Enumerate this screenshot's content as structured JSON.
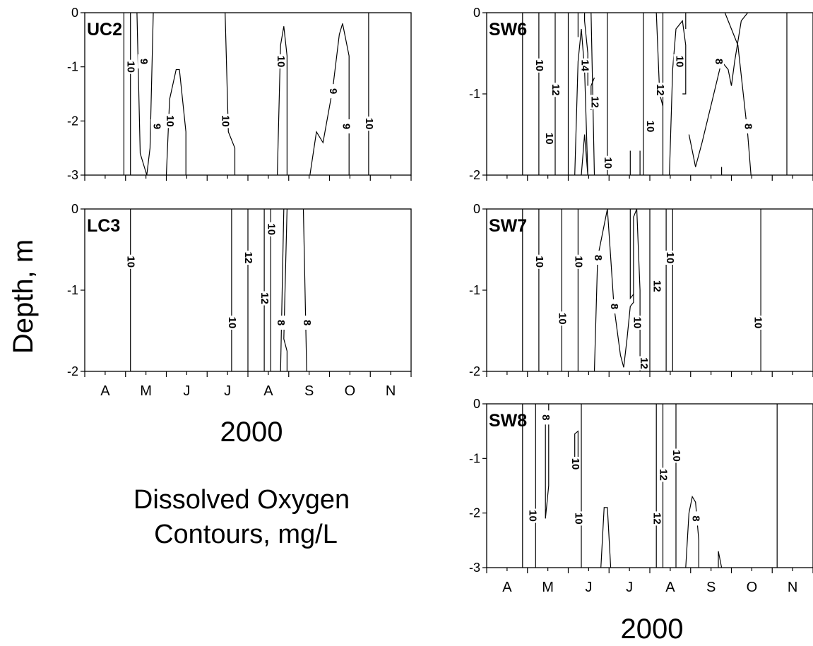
{
  "figure": {
    "ylabel": "Depth, m",
    "year_left": "2000",
    "year_right": "2000",
    "caption_line1": "Dissolved Oxygen",
    "caption_line2": "Contours, mg/L"
  },
  "chart_data": [
    {
      "type": "contour",
      "id": "UC2",
      "title": "UC2",
      "ylim": [
        -3,
        0
      ],
      "yticks": [
        "0",
        "-1",
        "-2",
        "-3"
      ],
      "xticks": [],
      "contour_labels": [
        {
          "text": "10",
          "x": 0.14,
          "y": -1.0
        },
        {
          "text": "9",
          "x": 0.18,
          "y": -0.9
        },
        {
          "text": "9",
          "x": 0.22,
          "y": -2.1
        },
        {
          "text": "10",
          "x": 0.26,
          "y": -2.0
        },
        {
          "text": "10",
          "x": 0.43,
          "y": -2.0
        },
        {
          "text": "10",
          "x": 0.6,
          "y": -0.9
        },
        {
          "text": "9",
          "x": 0.76,
          "y": -1.45
        },
        {
          "text": "9",
          "x": 0.8,
          "y": -2.1
        },
        {
          "text": "10",
          "x": 0.87,
          "y": -2.05
        }
      ]
    },
    {
      "type": "contour",
      "id": "LC3",
      "title": "LC3",
      "ylim": [
        -2,
        0
      ],
      "yticks": [
        "0",
        "-1",
        "-2"
      ],
      "xticks": [
        "A",
        "M",
        "J",
        "J",
        "A",
        "S",
        "O",
        "N"
      ],
      "contour_labels": [
        {
          "text": "10",
          "x": 0.14,
          "y": -0.65
        },
        {
          "text": "12",
          "x": 0.5,
          "y": -0.6
        },
        {
          "text": "10",
          "x": 0.57,
          "y": -0.25
        },
        {
          "text": "12",
          "x": 0.55,
          "y": -1.1
        },
        {
          "text": "10",
          "x": 0.45,
          "y": -1.4
        },
        {
          "text": "8",
          "x": 0.6,
          "y": -1.4
        },
        {
          "text": "8",
          "x": 0.68,
          "y": -1.4
        }
      ]
    },
    {
      "type": "contour",
      "id": "SW6",
      "title": "SW6",
      "ylim": [
        -2,
        0
      ],
      "yticks": [
        "0",
        "-1",
        "-2"
      ],
      "xticks": [],
      "contour_labels": [
        {
          "text": "10",
          "x": 0.16,
          "y": -0.65
        },
        {
          "text": "12",
          "x": 0.21,
          "y": -0.95
        },
        {
          "text": "14",
          "x": 0.3,
          "y": -0.65
        },
        {
          "text": "12",
          "x": 0.33,
          "y": -1.1
        },
        {
          "text": "10",
          "x": 0.19,
          "y": -1.55
        },
        {
          "text": "10",
          "x": 0.37,
          "y": -1.85
        },
        {
          "text": "10",
          "x": 0.5,
          "y": -1.4
        },
        {
          "text": "12",
          "x": 0.53,
          "y": -0.95
        },
        {
          "text": "10",
          "x": 0.59,
          "y": -0.6
        },
        {
          "text": "8",
          "x": 0.71,
          "y": -0.6
        },
        {
          "text": "8",
          "x": 0.8,
          "y": -1.4
        }
      ]
    },
    {
      "type": "contour",
      "id": "SW7",
      "title": "SW7",
      "ylim": [
        -2,
        0
      ],
      "yticks": [
        "0",
        "-1",
        "-2"
      ],
      "xticks": [],
      "contour_labels": [
        {
          "text": "10",
          "x": 0.16,
          "y": -0.65
        },
        {
          "text": "10",
          "x": 0.28,
          "y": -0.65
        },
        {
          "text": "8",
          "x": 0.34,
          "y": -0.6
        },
        {
          "text": "10",
          "x": 0.23,
          "y": -1.35
        },
        {
          "text": "8",
          "x": 0.39,
          "y": -1.2
        },
        {
          "text": "10",
          "x": 0.46,
          "y": -1.4
        },
        {
          "text": "12",
          "x": 0.52,
          "y": -0.95
        },
        {
          "text": "10",
          "x": 0.56,
          "y": -0.6
        },
        {
          "text": "12",
          "x": 0.48,
          "y": -1.9
        },
        {
          "text": "10",
          "x": 0.83,
          "y": -1.4
        }
      ]
    },
    {
      "type": "contour",
      "id": "SW8",
      "title": "SW8",
      "ylim": [
        -3,
        0
      ],
      "yticks": [
        "0",
        "-1",
        "-2",
        "-3"
      ],
      "xticks": [
        "A",
        "M",
        "J",
        "J",
        "A",
        "S",
        "O",
        "N"
      ],
      "contour_labels": [
        {
          "text": "8",
          "x": 0.18,
          "y": -0.25
        },
        {
          "text": "10",
          "x": 0.27,
          "y": -1.1
        },
        {
          "text": "10",
          "x": 0.14,
          "y": -2.05
        },
        {
          "text": "10",
          "x": 0.28,
          "y": -2.1
        },
        {
          "text": "12",
          "x": 0.54,
          "y": -1.3
        },
        {
          "text": "10",
          "x": 0.58,
          "y": -0.95
        },
        {
          "text": "12",
          "x": 0.52,
          "y": -2.1
        },
        {
          "text": "8",
          "x": 0.64,
          "y": -2.1
        }
      ]
    }
  ]
}
